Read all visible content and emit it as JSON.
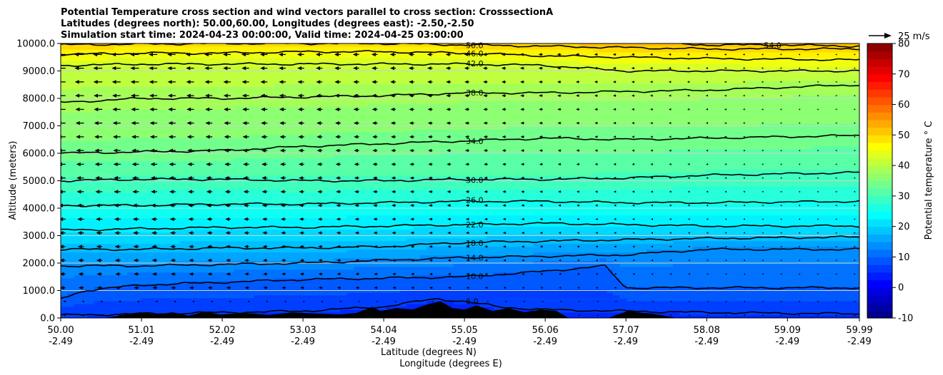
{
  "chart_data": {
    "type": "heatmap",
    "title_lines": [
      "Potential Temperature cross section and wind vectors parallel to cross section: CrosssectionA",
      "Latitudes (degrees north): 50.00,60.00, Longitudes (degrees east): -2.50,-2.50",
      "Simulation start time: 2024-04-23 00:00:00, Valid time: 2024-04-25 03:00:00"
    ],
    "ylabel": "Altitude (meters)",
    "xlabel_lines": [
      "Latitude (degrees N)",
      "Longitude (degrees E)"
    ],
    "ylim": [
      0,
      10000
    ],
    "yticks": [
      0,
      1000,
      2000,
      3000,
      4000,
      5000,
      6000,
      7000,
      8000,
      9000,
      10000
    ],
    "ytick_labels": [
      "0.0",
      "1000.0",
      "2000.0",
      "3000.0",
      "4000.0",
      "5000.0",
      "6000.0",
      "7000.0",
      "8000.0",
      "9000.0",
      "10000.0"
    ],
    "xlim": [
      50.0,
      59.99
    ],
    "xticks_lat": [
      "50.00",
      "51.01",
      "52.02",
      "53.03",
      "54.04",
      "55.05",
      "56.06",
      "57.07",
      "58.08",
      "59.09",
      "59.99"
    ],
    "xticks_lon": [
      "-2.49",
      "-2.49",
      "-2.49",
      "-2.49",
      "-2.49",
      "-2.49",
      "-2.49",
      "-2.49",
      "-2.49",
      "-2.49",
      "-2.49"
    ],
    "xtick_values": [
      50.0,
      51.01,
      52.02,
      53.03,
      54.04,
      55.05,
      56.06,
      57.07,
      58.08,
      59.09,
      59.99
    ],
    "grid": "horizontal",
    "colorbar": {
      "label": "Potential temperature $^\\circ$C",
      "label_display": "Potential temperature ° C",
      "range": [
        -10,
        80
      ],
      "ticks": [
        -10,
        0,
        10,
        20,
        30,
        40,
        50,
        60,
        70,
        80
      ],
      "colormap": "jet",
      "colors": [
        "#00007f",
        "#0000ff",
        "#007fff",
        "#00ffff",
        "#7fff7f",
        "#ffff00",
        "#ff7f00",
        "#ff0000",
        "#7f0000"
      ]
    },
    "quiver_key": {
      "label": "25 m/s",
      "speed": 25
    },
    "contours": [
      {
        "level": 6.0,
        "label": "6.0",
        "altitude_profile": [
          [
            50.0,
            100
          ],
          [
            51.0,
            150
          ],
          [
            52.0,
            200
          ],
          [
            53.0,
            250
          ],
          [
            54.0,
            400
          ],
          [
            54.7,
            700
          ],
          [
            55.05,
            600
          ],
          [
            55.5,
            400
          ],
          [
            56.06,
            300
          ],
          [
            57.07,
            250
          ],
          [
            58.08,
            200
          ],
          [
            59.99,
            150
          ]
        ]
      },
      {
        "level": 10.0,
        "label": "10.0",
        "altitude_profile": [
          [
            50.0,
            700
          ],
          [
            50.3,
            1000
          ],
          [
            51.01,
            1200
          ],
          [
            52.02,
            1300
          ],
          [
            53.03,
            1400
          ],
          [
            54.04,
            1450
          ],
          [
            55.05,
            1500
          ],
          [
            56.06,
            1700
          ],
          [
            56.8,
            1900
          ],
          [
            57.07,
            1100
          ],
          [
            58.08,
            1100
          ],
          [
            59.99,
            1100
          ]
        ]
      },
      {
        "level": 14.0,
        "label": "14.0",
        "altitude_profile": [
          [
            50.0,
            1900
          ],
          [
            51.01,
            1900
          ],
          [
            52.02,
            1950
          ],
          [
            53.03,
            2000
          ],
          [
            54.04,
            2100
          ],
          [
            55.05,
            2200
          ],
          [
            56.06,
            2250
          ],
          [
            57.07,
            2300
          ],
          [
            58.08,
            2500
          ],
          [
            59.99,
            2500
          ]
        ]
      },
      {
        "level": 18.0,
        "label": "18.0",
        "altitude_profile": [
          [
            50.0,
            2500
          ],
          [
            51.01,
            2500
          ],
          [
            52.02,
            2550
          ],
          [
            53.03,
            2550
          ],
          [
            54.04,
            2600
          ],
          [
            55.05,
            2750
          ],
          [
            56.06,
            2800
          ],
          [
            57.07,
            2850
          ],
          [
            58.08,
            2900
          ],
          [
            59.99,
            2950
          ]
        ]
      },
      {
        "level": 22.0,
        "label": "22.0",
        "altitude_profile": [
          [
            50.0,
            3200
          ],
          [
            51.01,
            3250
          ],
          [
            52.02,
            3300
          ],
          [
            53.03,
            3300
          ],
          [
            54.04,
            3350
          ],
          [
            55.05,
            3400
          ],
          [
            56.06,
            3450
          ],
          [
            57.07,
            3400
          ],
          [
            58.08,
            3350
          ],
          [
            59.99,
            3350
          ]
        ]
      },
      {
        "level": 26.0,
        "label": "26.0",
        "altitude_profile": [
          [
            50.0,
            4100
          ],
          [
            51.01,
            4100
          ],
          [
            52.02,
            4150
          ],
          [
            53.03,
            4150
          ],
          [
            54.04,
            4200
          ],
          [
            55.05,
            4250
          ],
          [
            56.06,
            4250
          ],
          [
            57.07,
            4200
          ],
          [
            58.08,
            4200
          ],
          [
            59.99,
            4250
          ]
        ]
      },
      {
        "level": 30.0,
        "label": "30.0",
        "altitude_profile": [
          [
            50.0,
            5000
          ],
          [
            51.01,
            5050
          ],
          [
            52.02,
            5050
          ],
          [
            53.03,
            5000
          ],
          [
            54.04,
            5000
          ],
          [
            55.05,
            5050
          ],
          [
            56.06,
            5050
          ],
          [
            57.07,
            5100
          ],
          [
            58.08,
            5200
          ],
          [
            59.99,
            5300
          ]
        ]
      },
      {
        "level": 34.0,
        "label": "34.0",
        "altitude_profile": [
          [
            50.0,
            6000
          ],
          [
            51.01,
            6050
          ],
          [
            52.02,
            6100
          ],
          [
            53.03,
            6250
          ],
          [
            54.04,
            6350
          ],
          [
            55.05,
            6450
          ],
          [
            56.06,
            6550
          ],
          [
            57.07,
            6500
          ],
          [
            58.08,
            6550
          ],
          [
            59.99,
            6650
          ]
        ]
      },
      {
        "level": 38.0,
        "label": "38.0",
        "altitude_profile": [
          [
            50.0,
            7850
          ],
          [
            51.01,
            8000
          ],
          [
            52.02,
            8000
          ],
          [
            53.03,
            8050
          ],
          [
            54.04,
            8100
          ],
          [
            55.05,
            8200
          ],
          [
            56.06,
            8200
          ],
          [
            57.07,
            8250
          ],
          [
            58.08,
            8300
          ],
          [
            59.99,
            8500
          ]
        ]
      },
      {
        "level": 42.0,
        "label": "42.0",
        "altitude_profile": [
          [
            50.0,
            9200
          ],
          [
            51.01,
            9250
          ],
          [
            52.02,
            9250
          ],
          [
            53.03,
            9250
          ],
          [
            54.04,
            9250
          ],
          [
            55.05,
            9250
          ],
          [
            56.06,
            9200
          ],
          [
            57.07,
            9000
          ],
          [
            58.08,
            9000
          ],
          [
            59.99,
            9000
          ]
        ]
      },
      {
        "level": 46.0,
        "label": "46.0",
        "altitude_profile": [
          [
            50.0,
            9600
          ],
          [
            51.01,
            9650
          ],
          [
            52.02,
            9650
          ],
          [
            53.03,
            9700
          ],
          [
            54.04,
            9700
          ],
          [
            55.05,
            9650
          ],
          [
            56.06,
            9550
          ],
          [
            57.07,
            9500
          ],
          [
            58.08,
            9450
          ],
          [
            59.99,
            9400
          ]
        ]
      },
      {
        "level": 50.0,
        "label": "50.0",
        "altitude_profile": [
          [
            50.0,
            9950
          ],
          [
            51.01,
            9980
          ],
          [
            52.02,
            10000
          ],
          [
            53.03,
            10000
          ],
          [
            54.04,
            10000
          ],
          [
            55.05,
            9950
          ],
          [
            56.06,
            9900
          ],
          [
            57.07,
            9850
          ],
          [
            58.08,
            9800
          ],
          [
            59.99,
            9800
          ]
        ]
      },
      {
        "level": 54.0,
        "label": "54.0",
        "altitude_profile": [
          [
            57.6,
            10000
          ],
          [
            58.08,
            9950
          ],
          [
            59.0,
            9950
          ],
          [
            59.99,
            9900
          ]
        ]
      }
    ],
    "terrain_profile": [
      [
        50.0,
        0
      ],
      [
        50.55,
        0
      ],
      [
        50.7,
        60
      ],
      [
        50.85,
        150
      ],
      [
        51.0,
        200
      ],
      [
        51.2,
        120
      ],
      [
        51.4,
        200
      ],
      [
        51.6,
        80
      ],
      [
        51.8,
        220
      ],
      [
        52.0,
        120
      ],
      [
        52.3,
        180
      ],
      [
        52.6,
        100
      ],
      [
        52.9,
        200
      ],
      [
        53.2,
        150
      ],
      [
        53.5,
        120
      ],
      [
        53.7,
        180
      ],
      [
        53.9,
        400
      ],
      [
        54.0,
        250
      ],
      [
        54.2,
        350
      ],
      [
        54.4,
        300
      ],
      [
        54.6,
        500
      ],
      [
        54.75,
        600
      ],
      [
        54.9,
        350
      ],
      [
        55.05,
        300
      ],
      [
        55.2,
        450
      ],
      [
        55.4,
        250
      ],
      [
        55.6,
        350
      ],
      [
        55.8,
        200
      ],
      [
        56.0,
        300
      ],
      [
        56.2,
        250
      ],
      [
        56.35,
        0
      ],
      [
        56.85,
        0
      ],
      [
        57.0,
        150
      ],
      [
        57.1,
        250
      ],
      [
        57.2,
        200
      ],
      [
        57.4,
        150
      ],
      [
        57.6,
        50
      ],
      [
        57.7,
        0
      ],
      [
        59.99,
        0
      ]
    ],
    "wind_u_note": "wind vectors parallel to cross section; arrows point toward decreasing latitude in the west/left half and shrink toward the right"
  }
}
